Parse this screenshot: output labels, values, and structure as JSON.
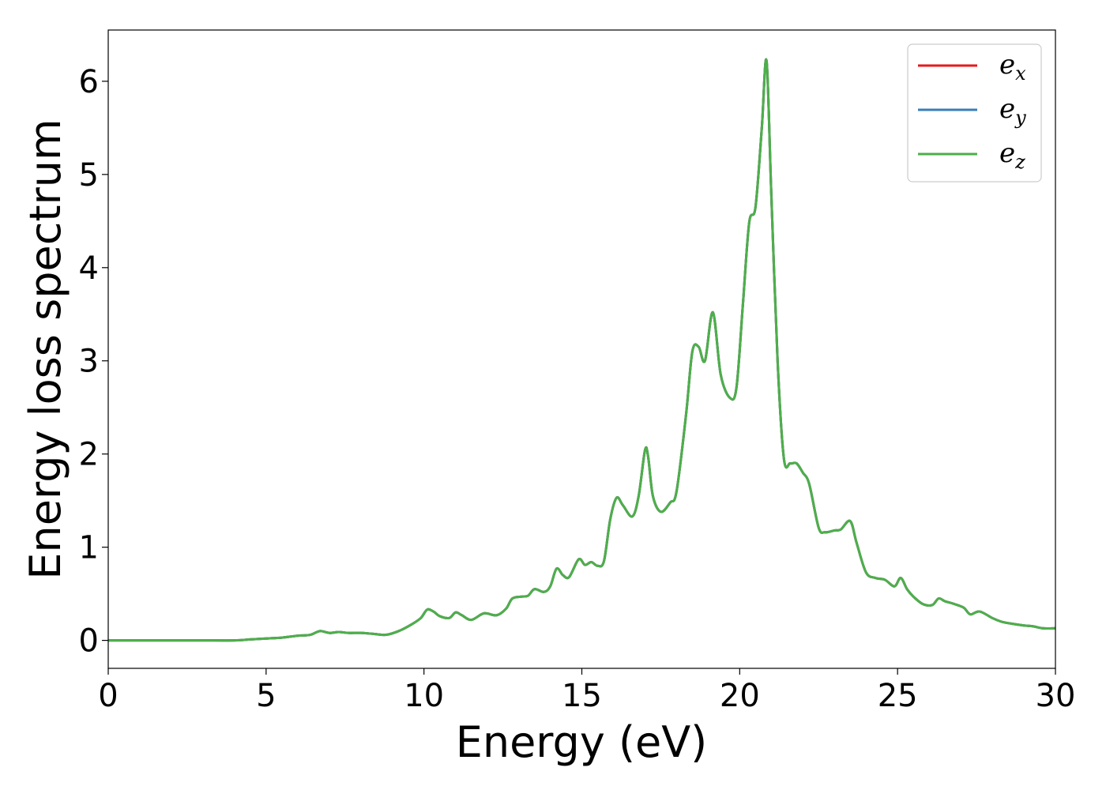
{
  "chart_data": {
    "type": "line",
    "title": "",
    "xlabel": "Energy (eV)",
    "ylabel": "Energy loss spectrum",
    "xlim": [
      0,
      30
    ],
    "ylim": [
      -0.3,
      6.55
    ],
    "xticks": [
      "0",
      "5",
      "10",
      "15",
      "20",
      "25",
      "30"
    ],
    "yticks": [
      "0",
      "1",
      "2",
      "3",
      "4",
      "5",
      "6"
    ],
    "grid": false,
    "legend_position": "top-right",
    "x": [
      0,
      1,
      2,
      3,
      4,
      4.5,
      5,
      5.5,
      6,
      6.4,
      6.7,
      7.0,
      7.3,
      7.6,
      8.0,
      8.4,
      8.8,
      9.2,
      9.6,
      9.9,
      10.1,
      10.3,
      10.5,
      10.8,
      11.0,
      11.2,
      11.5,
      11.9,
      12.3,
      12.6,
      12.8,
      13.1,
      13.3,
      13.5,
      13.8,
      14.0,
      14.2,
      14.4,
      14.6,
      14.9,
      15.1,
      15.3,
      15.5,
      15.7,
      15.9,
      16.1,
      16.3,
      16.6,
      16.8,
      17.0,
      17.1,
      17.25,
      17.5,
      17.8,
      18.0,
      18.3,
      18.5,
      18.7,
      18.9,
      19.15,
      19.4,
      19.7,
      19.9,
      20.1,
      20.3,
      20.5,
      20.7,
      20.85,
      21.0,
      21.2,
      21.4,
      21.6,
      21.8,
      22.0,
      22.2,
      22.5,
      22.7,
      23.0,
      23.2,
      23.5,
      23.7,
      24.0,
      24.3,
      24.6,
      24.9,
      25.1,
      25.3,
      25.5,
      25.8,
      26.1,
      26.3,
      26.5,
      26.8,
      27.1,
      27.3,
      27.6,
      28.0,
      28.3,
      28.6,
      29.0,
      29.3,
      29.6,
      30.0
    ],
    "series": [
      {
        "name": "e_x",
        "color": "#e41a1c",
        "y": [
          0.0,
          0.0,
          0.0,
          0.0,
          0.0,
          0.01,
          0.02,
          0.03,
          0.05,
          0.06,
          0.1,
          0.08,
          0.09,
          0.08,
          0.08,
          0.07,
          0.06,
          0.1,
          0.17,
          0.24,
          0.33,
          0.31,
          0.26,
          0.24,
          0.3,
          0.27,
          0.22,
          0.29,
          0.27,
          0.34,
          0.45,
          0.47,
          0.48,
          0.55,
          0.52,
          0.58,
          0.77,
          0.7,
          0.68,
          0.87,
          0.81,
          0.84,
          0.8,
          0.85,
          1.3,
          1.53,
          1.45,
          1.33,
          1.55,
          2.04,
          1.97,
          1.55,
          1.38,
          1.48,
          1.6,
          2.42,
          3.1,
          3.15,
          3.0,
          3.52,
          2.85,
          2.6,
          2.72,
          3.6,
          4.48,
          4.65,
          5.5,
          6.22,
          4.8,
          3.0,
          1.95,
          1.9,
          1.9,
          1.8,
          1.68,
          1.21,
          1.16,
          1.18,
          1.19,
          1.28,
          1.05,
          0.73,
          0.67,
          0.65,
          0.58,
          0.67,
          0.55,
          0.47,
          0.39,
          0.38,
          0.45,
          0.42,
          0.39,
          0.35,
          0.28,
          0.31,
          0.24,
          0.2,
          0.18,
          0.16,
          0.15,
          0.13,
          0.13
        ]
      },
      {
        "name": "e_y",
        "color": "#377eb8",
        "y": [
          0.0,
          0.0,
          0.0,
          0.0,
          0.0,
          0.01,
          0.02,
          0.03,
          0.05,
          0.06,
          0.1,
          0.08,
          0.09,
          0.08,
          0.08,
          0.07,
          0.06,
          0.1,
          0.17,
          0.24,
          0.33,
          0.31,
          0.26,
          0.24,
          0.3,
          0.27,
          0.22,
          0.29,
          0.27,
          0.34,
          0.45,
          0.47,
          0.48,
          0.55,
          0.52,
          0.58,
          0.77,
          0.7,
          0.68,
          0.87,
          0.81,
          0.84,
          0.8,
          0.85,
          1.3,
          1.53,
          1.45,
          1.33,
          1.55,
          2.04,
          1.97,
          1.55,
          1.38,
          1.48,
          1.6,
          2.42,
          3.1,
          3.15,
          3.0,
          3.52,
          2.85,
          2.6,
          2.72,
          3.6,
          4.48,
          4.65,
          5.5,
          6.22,
          4.8,
          3.0,
          1.95,
          1.9,
          1.9,
          1.8,
          1.68,
          1.21,
          1.16,
          1.18,
          1.19,
          1.28,
          1.05,
          0.73,
          0.67,
          0.65,
          0.58,
          0.67,
          0.55,
          0.47,
          0.39,
          0.38,
          0.45,
          0.42,
          0.39,
          0.35,
          0.28,
          0.31,
          0.24,
          0.2,
          0.18,
          0.16,
          0.15,
          0.13,
          0.13
        ]
      },
      {
        "name": "e_z",
        "color": "#4daf4a",
        "y": [
          0.0,
          0.0,
          0.0,
          0.0,
          0.0,
          0.01,
          0.02,
          0.03,
          0.05,
          0.06,
          0.1,
          0.08,
          0.09,
          0.08,
          0.08,
          0.07,
          0.06,
          0.1,
          0.17,
          0.24,
          0.33,
          0.31,
          0.26,
          0.24,
          0.3,
          0.27,
          0.22,
          0.29,
          0.27,
          0.34,
          0.45,
          0.47,
          0.48,
          0.55,
          0.52,
          0.58,
          0.77,
          0.7,
          0.68,
          0.87,
          0.81,
          0.84,
          0.8,
          0.85,
          1.3,
          1.53,
          1.45,
          1.33,
          1.55,
          2.04,
          1.97,
          1.55,
          1.38,
          1.48,
          1.6,
          2.42,
          3.1,
          3.15,
          3.0,
          3.52,
          2.85,
          2.6,
          2.72,
          3.6,
          4.48,
          4.65,
          5.5,
          6.22,
          4.8,
          3.0,
          1.95,
          1.9,
          1.9,
          1.8,
          1.68,
          1.21,
          1.16,
          1.18,
          1.19,
          1.28,
          1.05,
          0.73,
          0.67,
          0.65,
          0.58,
          0.67,
          0.55,
          0.47,
          0.39,
          0.38,
          0.45,
          0.42,
          0.39,
          0.35,
          0.28,
          0.31,
          0.24,
          0.2,
          0.18,
          0.16,
          0.15,
          0.13,
          0.13
        ]
      }
    ],
    "legend": [
      {
        "base": "e",
        "sub": "x",
        "color": "#e41a1c"
      },
      {
        "base": "e",
        "sub": "y",
        "color": "#377eb8"
      },
      {
        "base": "e",
        "sub": "z",
        "color": "#4daf4a"
      }
    ]
  }
}
